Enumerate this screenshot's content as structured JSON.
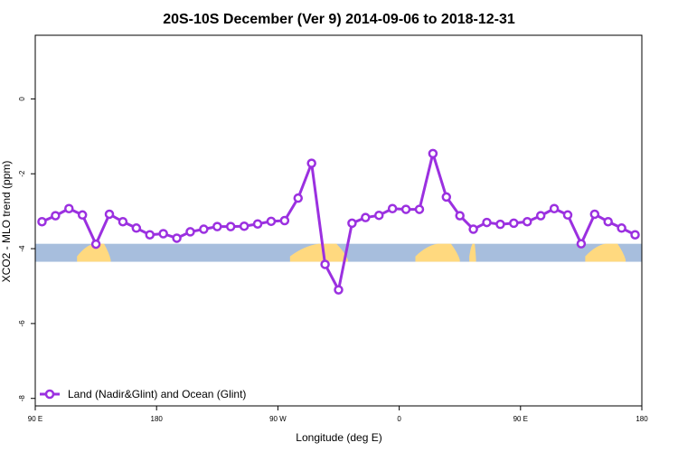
{
  "chart_data": {
    "type": "line",
    "title": "20S-10S December (Ver 9)   2014-09-06 to 2018-12-31",
    "xlabel": "Longitude (deg E)",
    "ylabel": "XCO2 - MLO trend (ppm)",
    "xlim": [
      90,
      540
    ],
    "ylim": [
      -8.2,
      1.7
    ],
    "x_ticks": [
      {
        "value": 90,
        "label": "90 E"
      },
      {
        "value": 180,
        "label": "180"
      },
      {
        "value": 270,
        "label": "90 W"
      },
      {
        "value": 360,
        "label": "0"
      },
      {
        "value": 450,
        "label": "90 E"
      },
      {
        "value": 540,
        "label": "180"
      }
    ],
    "y_ticks": [
      {
        "value": 0,
        "label": "0"
      },
      {
        "value": -2,
        "label": "-2"
      },
      {
        "value": -4,
        "label": "-4"
      },
      {
        "value": -6,
        "label": "-6"
      },
      {
        "value": -8,
        "label": "-8"
      }
    ],
    "series": [
      {
        "name": "Land (Nadir&Glint) and Ocean (Glint)",
        "color": "#9B30E0",
        "x": [
          95,
          105,
          115,
          125,
          135,
          145,
          155,
          165,
          175,
          185,
          195,
          205,
          215,
          225,
          235,
          245,
          255,
          265,
          275,
          285,
          295,
          305,
          315,
          325,
          335,
          345,
          355,
          365,
          375,
          385,
          395,
          405,
          415,
          425,
          435,
          445,
          455,
          465,
          475,
          485,
          495,
          505,
          515,
          525,
          535
        ],
        "values": [
          -3.28,
          -3.12,
          -2.93,
          -3.1,
          -3.88,
          -3.08,
          -3.28,
          -3.45,
          -3.63,
          -3.6,
          -3.72,
          -3.55,
          -3.48,
          -3.41,
          -3.41,
          -3.4,
          -3.34,
          -3.27,
          -3.25,
          -2.65,
          -1.72,
          -4.42,
          -5.1,
          -3.32,
          -3.17,
          -3.11,
          -2.93,
          -2.95,
          -2.95,
          -1.46,
          -2.62,
          -3.12,
          -3.48,
          -3.3,
          -3.35,
          -3.32,
          -3.28,
          -3.12,
          -2.93,
          -3.1,
          -3.87,
          -3.08,
          -3.28,
          -3.45,
          -3.63
        ]
      }
    ],
    "surface_band": {
      "y_range": [
        -4.35,
        -3.87
      ],
      "ocean_color": "#A7BEDD",
      "land_color": "#FFD97F",
      "land_segments": [
        [
          121,
          146
        ],
        [
          279,
          322
        ],
        [
          372,
          405
        ],
        [
          412,
          417
        ],
        [
          498,
          528
        ]
      ]
    },
    "legend": {
      "position": "bottom-left"
    }
  }
}
